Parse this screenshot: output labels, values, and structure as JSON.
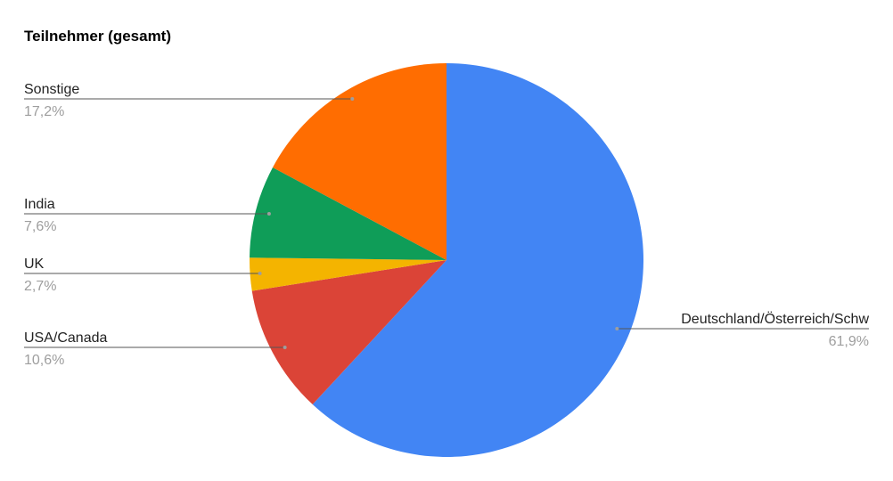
{
  "chart_data": {
    "type": "pie",
    "title": "Teilnehmer (gesamt)",
    "start_angle": "top, clockwise",
    "slices": [
      {
        "label": "Deutschland/Österreich/Schw",
        "value": 61.9,
        "value_label": "61,9%",
        "color": "#4285f4"
      },
      {
        "label": "USA/Canada",
        "value": 10.6,
        "value_label": "10,6%",
        "color": "#db4437"
      },
      {
        "label": "UK",
        "value": 2.7,
        "value_label": "2,7%",
        "color": "#f4b400"
      },
      {
        "label": "India",
        "value": 7.6,
        "value_label": "7,6%",
        "color": "#0f9d58"
      },
      {
        "label": "Sonstige",
        "value": 17.2,
        "value_label": "17,2%",
        "color": "#ff6d01"
      }
    ]
  }
}
